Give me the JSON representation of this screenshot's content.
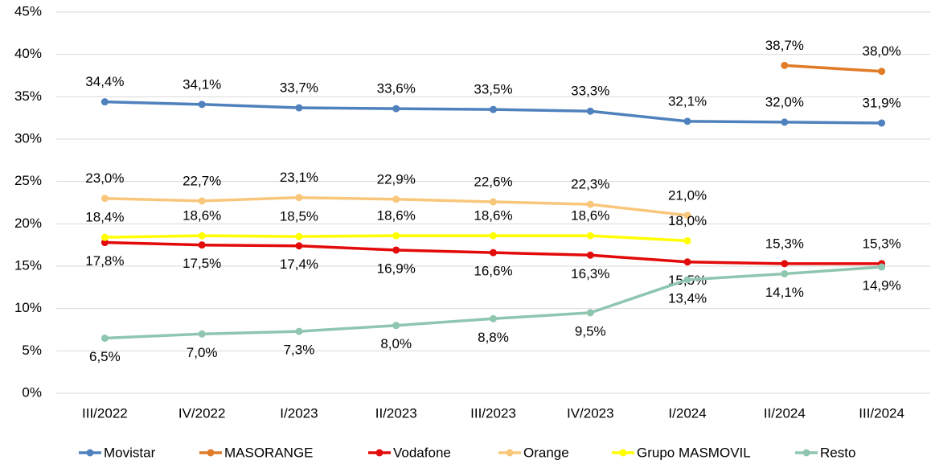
{
  "chart_data": {
    "type": "line",
    "categories": [
      "III/2022",
      "IV/2022",
      "I/2023",
      "II/2023",
      "III/2023",
      "IV/2023",
      "I/2024",
      "II/2024",
      "III/2024"
    ],
    "series": [
      {
        "name": "Movistar",
        "color": "#4f81bd",
        "values": [
          34.4,
          34.1,
          33.7,
          33.6,
          33.5,
          33.3,
          32.1,
          32.0,
          31.9
        ],
        "value_labels": [
          "34,4%",
          "34,1%",
          "33,7%",
          "33,6%",
          "33,5%",
          "33,3%",
          "32,1%",
          "32,0%",
          "31,9%"
        ]
      },
      {
        "name": "MASORANGE",
        "color": "#e07b28",
        "values": [
          null,
          null,
          null,
          null,
          null,
          null,
          null,
          38.7,
          38.0
        ],
        "value_labels": [
          null,
          null,
          null,
          null,
          null,
          null,
          null,
          "38,7%",
          "38,0%"
        ]
      },
      {
        "name": "Vodafone",
        "color": "#e30a0a",
        "values": [
          17.8,
          17.5,
          17.4,
          16.9,
          16.6,
          16.3,
          15.5,
          15.3,
          15.3
        ],
        "value_labels": [
          "17,8%",
          "17,5%",
          "17,4%",
          "16,9%",
          "16,6%",
          "16,3%",
          "15,5%",
          "15,3%",
          "15,3%"
        ]
      },
      {
        "name": "Orange",
        "color": "#f9c77b",
        "values": [
          23.0,
          22.7,
          23.1,
          22.9,
          22.6,
          22.3,
          21.0,
          null,
          null
        ],
        "value_labels": [
          "23,0%",
          "22,7%",
          "23,1%",
          "22,9%",
          "22,6%",
          "22,3%",
          "21,0%",
          null,
          null
        ]
      },
      {
        "name": "Grupo MASMOVIL",
        "color": "#ffff00",
        "values": [
          18.4,
          18.6,
          18.5,
          18.6,
          18.6,
          18.6,
          18.0,
          null,
          null
        ],
        "value_labels": [
          "18,4%",
          "18,6%",
          "18,5%",
          "18,6%",
          "18,6%",
          "18,6%",
          "18,0%",
          null,
          null
        ]
      },
      {
        "name": "Resto",
        "color": "#8fc6b0",
        "values": [
          6.5,
          7.0,
          7.3,
          8.0,
          8.8,
          9.5,
          13.4,
          14.1,
          14.9
        ],
        "value_labels": [
          "6,5%",
          "7,0%",
          "7,3%",
          "8,0%",
          "8,8%",
          "9,5%",
          "13,4%",
          "14,1%",
          "14,9%"
        ]
      }
    ],
    "ylim": [
      0,
      45
    ],
    "yticks": [
      {
        "value": 0,
        "label": "0%"
      },
      {
        "value": 5,
        "label": "5%"
      },
      {
        "value": 10,
        "label": "10%"
      },
      {
        "value": 15,
        "label": "15%"
      },
      {
        "value": 20,
        "label": "20%"
      },
      {
        "value": 25,
        "label": "25%"
      },
      {
        "value": 30,
        "label": "30%"
      },
      {
        "value": 35,
        "label": "35%"
      },
      {
        "value": 40,
        "label": "40%"
      },
      {
        "value": 45,
        "label": "45%"
      }
    ],
    "grid": true,
    "legend": "bottom"
  }
}
